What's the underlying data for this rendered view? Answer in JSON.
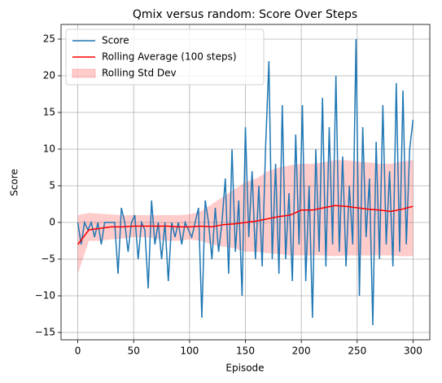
{
  "chart_data": {
    "type": "line",
    "title": "Qmix versus random: Score Over Steps",
    "x_label": "Episode",
    "y_label": "Score",
    "xlim": [
      -15,
      315
    ],
    "ylim": [
      -16,
      27
    ],
    "xticks": [
      0,
      50,
      100,
      150,
      200,
      250,
      300
    ],
    "yticks": [
      {
        "value": -15,
        "label": "−15"
      },
      {
        "value": -10,
        "label": "−10"
      },
      {
        "value": -5,
        "label": "−5"
      },
      0,
      5,
      10,
      15,
      20,
      25
    ],
    "grid": true,
    "legend": "upper left",
    "series": [
      {
        "name": "Score",
        "color": "#1f77b4",
        "x": [
          0,
          3,
          6,
          9,
          12,
          15,
          18,
          21,
          24,
          27,
          30,
          33,
          36,
          39,
          42,
          45,
          48,
          51,
          54,
          57,
          60,
          63,
          66,
          69,
          72,
          75,
          78,
          81,
          84,
          87,
          90,
          93,
          96,
          99,
          102,
          105,
          108,
          111,
          114,
          117,
          120,
          123,
          126,
          129,
          132,
          135,
          138,
          141,
          144,
          147,
          150,
          153,
          156,
          159,
          162,
          165,
          168,
          171,
          174,
          177,
          180,
          183,
          186,
          189,
          192,
          195,
          198,
          201,
          204,
          207,
          210,
          213,
          216,
          219,
          222,
          225,
          228,
          231,
          234,
          237,
          240,
          243,
          246,
          249,
          252,
          255,
          258,
          261,
          264,
          267,
          270,
          273,
          276,
          279,
          282,
          285,
          288,
          291,
          294,
          297,
          300
        ],
        "values": [
          0,
          -3,
          0,
          -1,
          0,
          -2,
          0,
          -3,
          0,
          0,
          0,
          0,
          -7,
          2,
          0,
          -4,
          0,
          1,
          -5,
          0,
          -1,
          -9,
          3,
          -3,
          0,
          -5,
          0,
          -8,
          0,
          -2,
          0,
          -3,
          0,
          -1,
          -2,
          0,
          2,
          -13,
          3,
          0,
          -5,
          2,
          -4,
          0,
          6,
          -7,
          10,
          -4,
          3,
          -10,
          13,
          -2,
          7,
          -5,
          5,
          -6,
          10,
          22,
          -5,
          8,
          -7,
          16,
          -5,
          4,
          -8,
          12,
          -3,
          16,
          -8,
          5,
          -13,
          10,
          -4,
          17,
          -6,
          13,
          -3,
          20,
          -4,
          9,
          -6,
          5,
          -3,
          25,
          -10,
          13,
          -2,
          6,
          -14,
          11,
          -5,
          16,
          -3,
          7,
          -6,
          19,
          -4,
          18,
          -3,
          10,
          14
        ]
      },
      {
        "name": "Rolling Average (100 steps)",
        "color": "#ff0000",
        "x": [
          0,
          10,
          20,
          30,
          40,
          50,
          60,
          70,
          80,
          90,
          100,
          110,
          120,
          130,
          140,
          150,
          160,
          170,
          180,
          190,
          200,
          210,
          220,
          230,
          240,
          250,
          260,
          270,
          280,
          290,
          300
        ],
        "values": [
          -3,
          -1,
          -0.8,
          -0.6,
          -0.6,
          -0.5,
          -0.5,
          -0.5,
          -0.5,
          -0.6,
          -0.6,
          -0.5,
          -0.6,
          -0.3,
          -0.2,
          0,
          0.2,
          0.5,
          0.8,
          1,
          1.7,
          1.7,
          2,
          2.3,
          2.2,
          2,
          1.8,
          1.7,
          1.5,
          1.8,
          2.2
        ]
      }
    ],
    "band": {
      "name": "Rolling Std Dev",
      "color": "#ff0000",
      "x": [
        0,
        10,
        20,
        30,
        40,
        50,
        60,
        70,
        80,
        90,
        100,
        110,
        120,
        130,
        140,
        150,
        160,
        170,
        180,
        190,
        200,
        210,
        220,
        230,
        240,
        250,
        260,
        270,
        280,
        290,
        300
      ],
      "upper": [
        1,
        1.3,
        1.2,
        1.1,
        1,
        1,
        1,
        1,
        1,
        1,
        1.1,
        1.5,
        2.5,
        3.5,
        4.5,
        5.5,
        6,
        7,
        7.5,
        7.8,
        8,
        8,
        8.2,
        8.5,
        8.5,
        8.3,
        8.2,
        8,
        8,
        8.3,
        8.5
      ],
      "lower": [
        -7,
        -2.5,
        -2.5,
        -2.3,
        -2.2,
        -2,
        -2,
        -2.2,
        -2.5,
        -2.5,
        -2.3,
        -2.5,
        -3,
        -3.3,
        -3.5,
        -4,
        -4,
        -4.2,
        -4.3,
        -4.5,
        -4.5,
        -4.5,
        -4.5,
        -4.6,
        -4.5,
        -4.5,
        -4.5,
        -4.5,
        -4.5,
        -4.6,
        -4.6
      ]
    }
  }
}
